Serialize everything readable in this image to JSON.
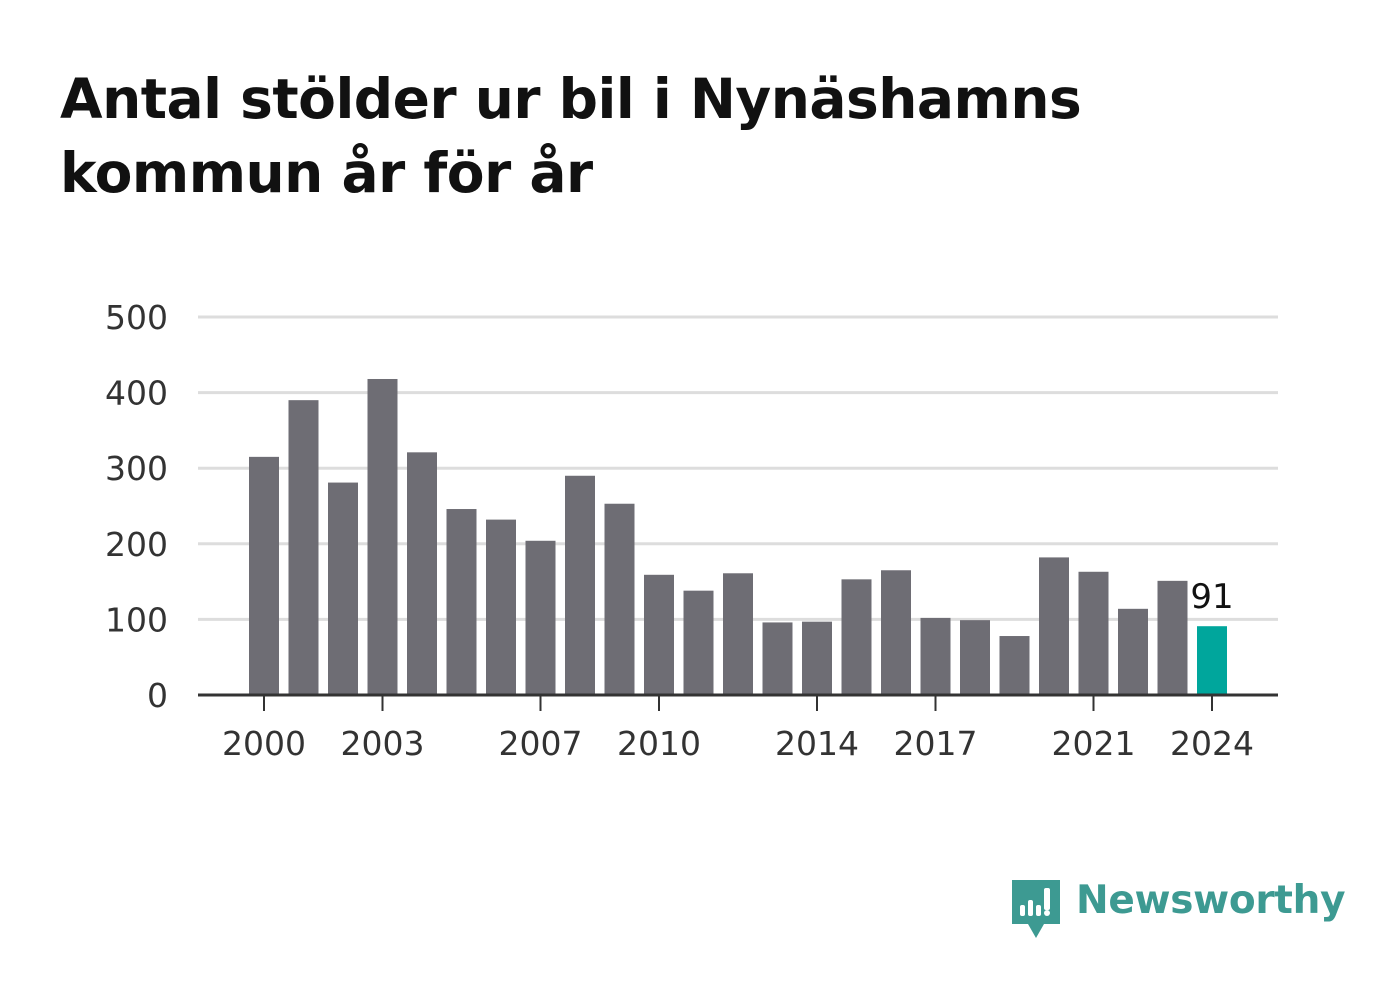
{
  "title_lines": [
    "Antal stölder ur bil i Nynäshamns",
    "kommun år för år"
  ],
  "brand": {
    "name": "Newsworthy",
    "color": "#3d9a92",
    "icon": "newsworthy-logo-icon"
  },
  "chart_data": {
    "type": "bar",
    "title": "Antal stölder ur bil i Nynäshamns kommun år för år",
    "xlabel": "",
    "ylabel": "",
    "categories": [
      "2000",
      "2001",
      "2002",
      "2003",
      "2004",
      "2005",
      "2006",
      "2007",
      "2008",
      "2009",
      "2010",
      "2011",
      "2012",
      "2013",
      "2014",
      "2015",
      "2016",
      "2017",
      "2018",
      "2019",
      "2020",
      "2021",
      "2022",
      "2023",
      "2024"
    ],
    "values": [
      315,
      390,
      281,
      418,
      321,
      246,
      232,
      204,
      290,
      253,
      159,
      138,
      161,
      96,
      97,
      153,
      165,
      102,
      99,
      78,
      182,
      163,
      114,
      151,
      91
    ],
    "ylim": [
      0,
      500
    ],
    "yticks": [
      0,
      100,
      200,
      300,
      400,
      500
    ],
    "xtick_labels": [
      "2000",
      "2003",
      "2007",
      "2010",
      "2014",
      "2017",
      "2021",
      "2024"
    ],
    "grid": true,
    "legend": "none",
    "highlight": {
      "category": "2024",
      "label": "91"
    },
    "colors": {
      "bar": "#6e6d74",
      "highlight": "#00a69c",
      "grid": "#dddddd",
      "axis": "#333333"
    }
  }
}
